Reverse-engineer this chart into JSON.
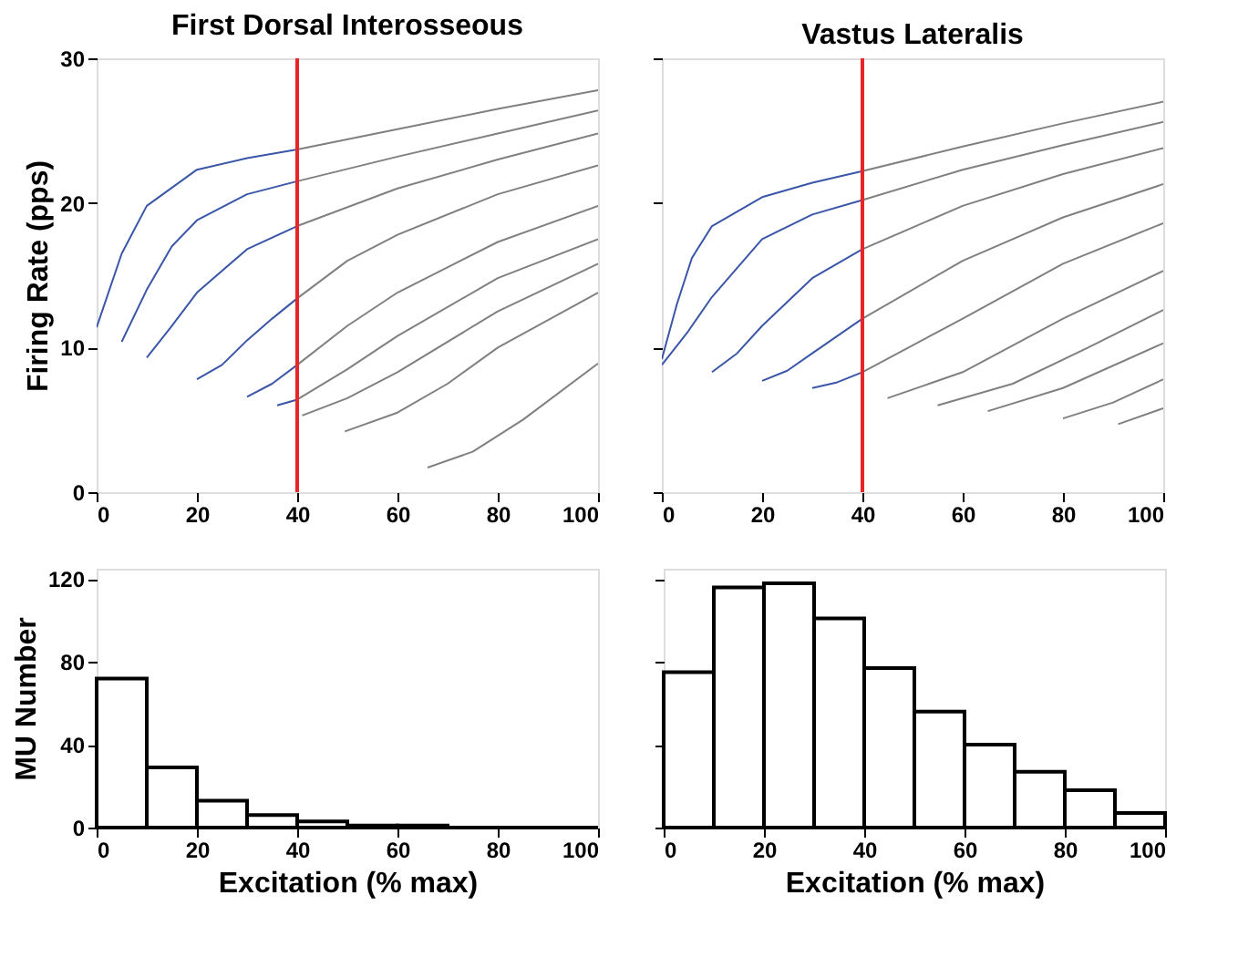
{
  "chart_data": [
    {
      "type": "line",
      "title": "First Dorsal Interosseous",
      "ylabel": "Firing Rate (pps)",
      "xlim": [
        0,
        100
      ],
      "xticks": [
        0,
        20,
        40,
        60,
        80,
        100
      ],
      "ylim": [
        0,
        30
      ],
      "yticks": [
        0,
        10,
        20,
        30
      ],
      "grid": false,
      "ref_lines": [
        {
          "axis": "x",
          "value": 40,
          "color": "#e8262a"
        }
      ],
      "series": [
        {
          "color": "#3a56a8",
          "x": [
            0,
            5,
            10,
            20,
            30,
            40
          ],
          "values": [
            11.4,
            16.5,
            19.8,
            22.3,
            23.1,
            23.7
          ]
        },
        {
          "color": "#808080",
          "x": [
            40,
            60,
            80,
            100
          ],
          "values": [
            23.7,
            25.1,
            26.5,
            27.8
          ]
        },
        {
          "color": "#3a56a8",
          "x": [
            5,
            10,
            15,
            20,
            30,
            40
          ],
          "values": [
            10.4,
            14,
            17,
            18.8,
            20.6,
            21.5
          ]
        },
        {
          "color": "#808080",
          "x": [
            40,
            60,
            80,
            100
          ],
          "values": [
            21.5,
            23.2,
            24.8,
            26.4
          ]
        },
        {
          "color": "#3a56a8",
          "x": [
            10,
            15,
            20,
            30,
            40
          ],
          "values": [
            9.3,
            11.5,
            13.8,
            16.8,
            18.4
          ]
        },
        {
          "color": "#808080",
          "x": [
            40,
            60,
            80,
            100
          ],
          "values": [
            18.4,
            21,
            23,
            24.8
          ]
        },
        {
          "color": "#3a56a8",
          "x": [
            20,
            25,
            30,
            35,
            40
          ],
          "values": [
            7.8,
            8.8,
            10.5,
            12,
            13.4
          ]
        },
        {
          "color": "#808080",
          "x": [
            40,
            50,
            60,
            80,
            100
          ],
          "values": [
            13.4,
            16,
            17.8,
            20.6,
            22.6
          ]
        },
        {
          "color": "#3a56a8",
          "x": [
            30,
            35,
            40
          ],
          "values": [
            6.6,
            7.5,
            8.8
          ]
        },
        {
          "color": "#808080",
          "x": [
            40,
            50,
            60,
            80,
            100
          ],
          "values": [
            8.8,
            11.5,
            13.8,
            17.3,
            19.8
          ]
        },
        {
          "color": "#3a56a8",
          "x": [
            36,
            40
          ],
          "values": [
            6.0,
            6.4
          ]
        },
        {
          "color": "#808080",
          "x": [
            40,
            50,
            60,
            80,
            100
          ],
          "values": [
            6.4,
            8.5,
            10.8,
            14.8,
            17.5
          ]
        },
        {
          "color": "#808080",
          "x": [
            41,
            50,
            60,
            80,
            100
          ],
          "values": [
            5.3,
            6.5,
            8.3,
            12.5,
            15.8
          ]
        },
        {
          "color": "#808080",
          "x": [
            49.5,
            60,
            70,
            80,
            100
          ],
          "values": [
            4.2,
            5.5,
            7.5,
            10,
            13.8
          ]
        },
        {
          "color": "#808080",
          "x": [
            66,
            75,
            85,
            100
          ],
          "values": [
            1.7,
            2.8,
            5,
            8.9
          ]
        }
      ]
    },
    {
      "type": "line",
      "title": "Vastus Lateralis",
      "xlim": [
        0,
        100
      ],
      "xticks": [
        0,
        20,
        40,
        60,
        80,
        100
      ],
      "ylim": [
        0,
        30
      ],
      "yticks": [
        0,
        10,
        20,
        30
      ],
      "tick_labels": "x",
      "grid": false,
      "ref_lines": [
        {
          "axis": "x",
          "value": 40,
          "color": "#e8262a"
        }
      ],
      "series": [
        {
          "color": "#3a56a8",
          "x": [
            0,
            3,
            6,
            10,
            20,
            30,
            40
          ],
          "values": [
            9.2,
            13,
            16.2,
            18.4,
            20.4,
            21.4,
            22.2
          ]
        },
        {
          "color": "#808080",
          "x": [
            40,
            60,
            80,
            100
          ],
          "values": [
            22.2,
            23.9,
            25.5,
            27
          ]
        },
        {
          "color": "#3a56a8",
          "x": [
            0,
            5,
            10,
            20,
            30,
            40
          ],
          "values": [
            8.8,
            11,
            13.5,
            17.5,
            19.2,
            20.2
          ]
        },
        {
          "color": "#808080",
          "x": [
            40,
            60,
            80,
            100
          ],
          "values": [
            20.2,
            22.3,
            24,
            25.6
          ]
        },
        {
          "color": "#3a56a8",
          "x": [
            10,
            15,
            20,
            30,
            40
          ],
          "values": [
            8.3,
            9.6,
            11.5,
            14.8,
            16.8
          ]
        },
        {
          "color": "#808080",
          "x": [
            40,
            60,
            80,
            100
          ],
          "values": [
            16.8,
            19.8,
            22,
            23.8
          ]
        },
        {
          "color": "#3a56a8",
          "x": [
            20,
            25,
            30,
            40
          ],
          "values": [
            7.7,
            8.4,
            9.6,
            12
          ]
        },
        {
          "color": "#808080",
          "x": [
            40,
            60,
            80,
            100
          ],
          "values": [
            12,
            16,
            19,
            21.3
          ]
        },
        {
          "color": "#3a56a8",
          "x": [
            30,
            35,
            40
          ],
          "values": [
            7.2,
            7.6,
            8.3
          ]
        },
        {
          "color": "#808080",
          "x": [
            40,
            60,
            80,
            100
          ],
          "values": [
            8.3,
            12,
            15.8,
            18.6
          ]
        },
        {
          "color": "#808080",
          "x": [
            45,
            60,
            80,
            100
          ],
          "values": [
            6.5,
            8.3,
            12,
            15.3
          ]
        },
        {
          "color": "#808080",
          "x": [
            55,
            70,
            85,
            100
          ],
          "values": [
            6,
            7.5,
            10,
            12.6
          ]
        },
        {
          "color": "#808080",
          "x": [
            65,
            80,
            100
          ],
          "values": [
            5.6,
            7.2,
            10.3
          ]
        },
        {
          "color": "#808080",
          "x": [
            80,
            90,
            100
          ],
          "values": [
            5.1,
            6.2,
            7.8
          ]
        },
        {
          "color": "#808080",
          "x": [
            91,
            100
          ],
          "values": [
            4.7,
            5.8
          ]
        }
      ]
    },
    {
      "type": "histogram",
      "xlabel": "Excitation (% max)",
      "ylabel": "MU Number",
      "xlim": [
        0,
        100
      ],
      "xticks": [
        0,
        20,
        40,
        60,
        80,
        100
      ],
      "ylim": [
        0,
        125
      ],
      "yticks": [
        0,
        40,
        80,
        120
      ],
      "grid": false,
      "color": "#ffffff",
      "bins": [
        0,
        10,
        20,
        30,
        40,
        50,
        60,
        70,
        80,
        90,
        100
      ],
      "values": [
        72,
        29,
        13,
        6,
        3,
        1,
        1,
        0,
        0,
        0
      ]
    },
    {
      "type": "histogram",
      "xlabel": "Excitation (% max)",
      "xlim": [
        0,
        100
      ],
      "xticks": [
        0,
        20,
        40,
        60,
        80,
        100
      ],
      "ylim": [
        0,
        125
      ],
      "yticks": [
        0,
        40,
        80,
        120
      ],
      "tick_labels": "x",
      "grid": false,
      "color": "#ffffff",
      "bins": [
        0,
        10,
        20,
        30,
        40,
        50,
        60,
        70,
        80,
        90,
        100
      ],
      "values": [
        75,
        116,
        118,
        101,
        77,
        56,
        40,
        27,
        18,
        7
      ]
    }
  ]
}
